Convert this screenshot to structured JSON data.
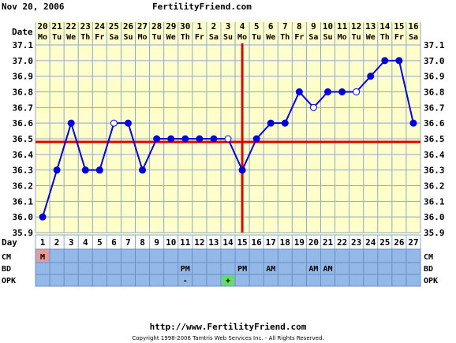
{
  "header": {
    "date": "Nov 20, 2006",
    "site": "FertilityFriend.com"
  },
  "footer": {
    "url": "http://www.FertilityFriend.com",
    "copyright": "Copyright 1998-2006 Tamtris Web Services Inc. - All Rights Reserved."
  },
  "colors": {
    "background": "#ffffcc",
    "grid": "#8fa8c8",
    "line": "#0000dd",
    "coverline": "#dd0000",
    "ovulation_line": "#dd0000",
    "row_fill": "#94b8e8",
    "menses": "#e89a9a",
    "opk_positive": "#66dd66"
  },
  "chart_data": {
    "type": "line",
    "row_labels": {
      "date": "Date",
      "day": "Day",
      "cm": "CM",
      "bd": "BD",
      "opk": "OPK"
    },
    "dates": [
      "20",
      "21",
      "22",
      "23",
      "24",
      "25",
      "26",
      "27",
      "28",
      "29",
      "30",
      "1",
      "2",
      "3",
      "4",
      "5",
      "6",
      "7",
      "8",
      "9",
      "10",
      "11",
      "12",
      "13",
      "14",
      "15",
      "16"
    ],
    "weekdays": [
      "Mo",
      "Tu",
      "We",
      "Th",
      "Fr",
      "Sa",
      "Su",
      "Mo",
      "Tu",
      "We",
      "Th",
      "Fr",
      "Sa",
      "Su",
      "Mo",
      "Tu",
      "We",
      "Th",
      "Fr",
      "Sa",
      "Su",
      "Mo",
      "Tu",
      "We",
      "Th",
      "Fr",
      "Sa"
    ],
    "cycle_days": [
      1,
      2,
      3,
      4,
      5,
      6,
      7,
      8,
      9,
      10,
      11,
      12,
      13,
      14,
      15,
      16,
      17,
      18,
      19,
      20,
      21,
      22,
      23,
      24,
      25,
      26,
      27
    ],
    "ylim": [
      35.9,
      37.1
    ],
    "y_ticks": [
      "35.9",
      "36.0",
      "36.1",
      "36.2",
      "36.3",
      "36.4",
      "36.5",
      "36.6",
      "36.7",
      "36.8",
      "36.9",
      "37.0",
      "37.1"
    ],
    "series": [
      {
        "values": [
          36.0,
          36.3,
          36.6,
          36.3,
          36.3,
          36.6,
          36.6,
          36.3,
          36.5,
          36.5,
          36.5,
          36.5,
          36.5,
          36.5,
          36.3,
          36.5,
          36.6,
          36.6,
          36.8,
          36.7,
          36.8,
          36.8,
          36.8,
          36.9,
          37.0,
          37.0,
          36.6
        ],
        "open_points": [
          6,
          14,
          20,
          23
        ]
      }
    ],
    "coverline": 36.48,
    "ovulation_day": 15,
    "cm_row": [
      {
        "day": 1,
        "text": "M",
        "highlight": "menses"
      }
    ],
    "bd_row": [
      {
        "day": 11,
        "text": "PM"
      },
      {
        "day": 15,
        "text": "PM"
      },
      {
        "day": 17,
        "text": "AM"
      },
      {
        "day": 20,
        "text": "AM"
      },
      {
        "day": 21,
        "text": "AM"
      }
    ],
    "opk_row": [
      {
        "day": 11,
        "text": "-"
      },
      {
        "day": 14,
        "text": "+",
        "highlight": "opk_positive"
      }
    ],
    "grid": true
  }
}
